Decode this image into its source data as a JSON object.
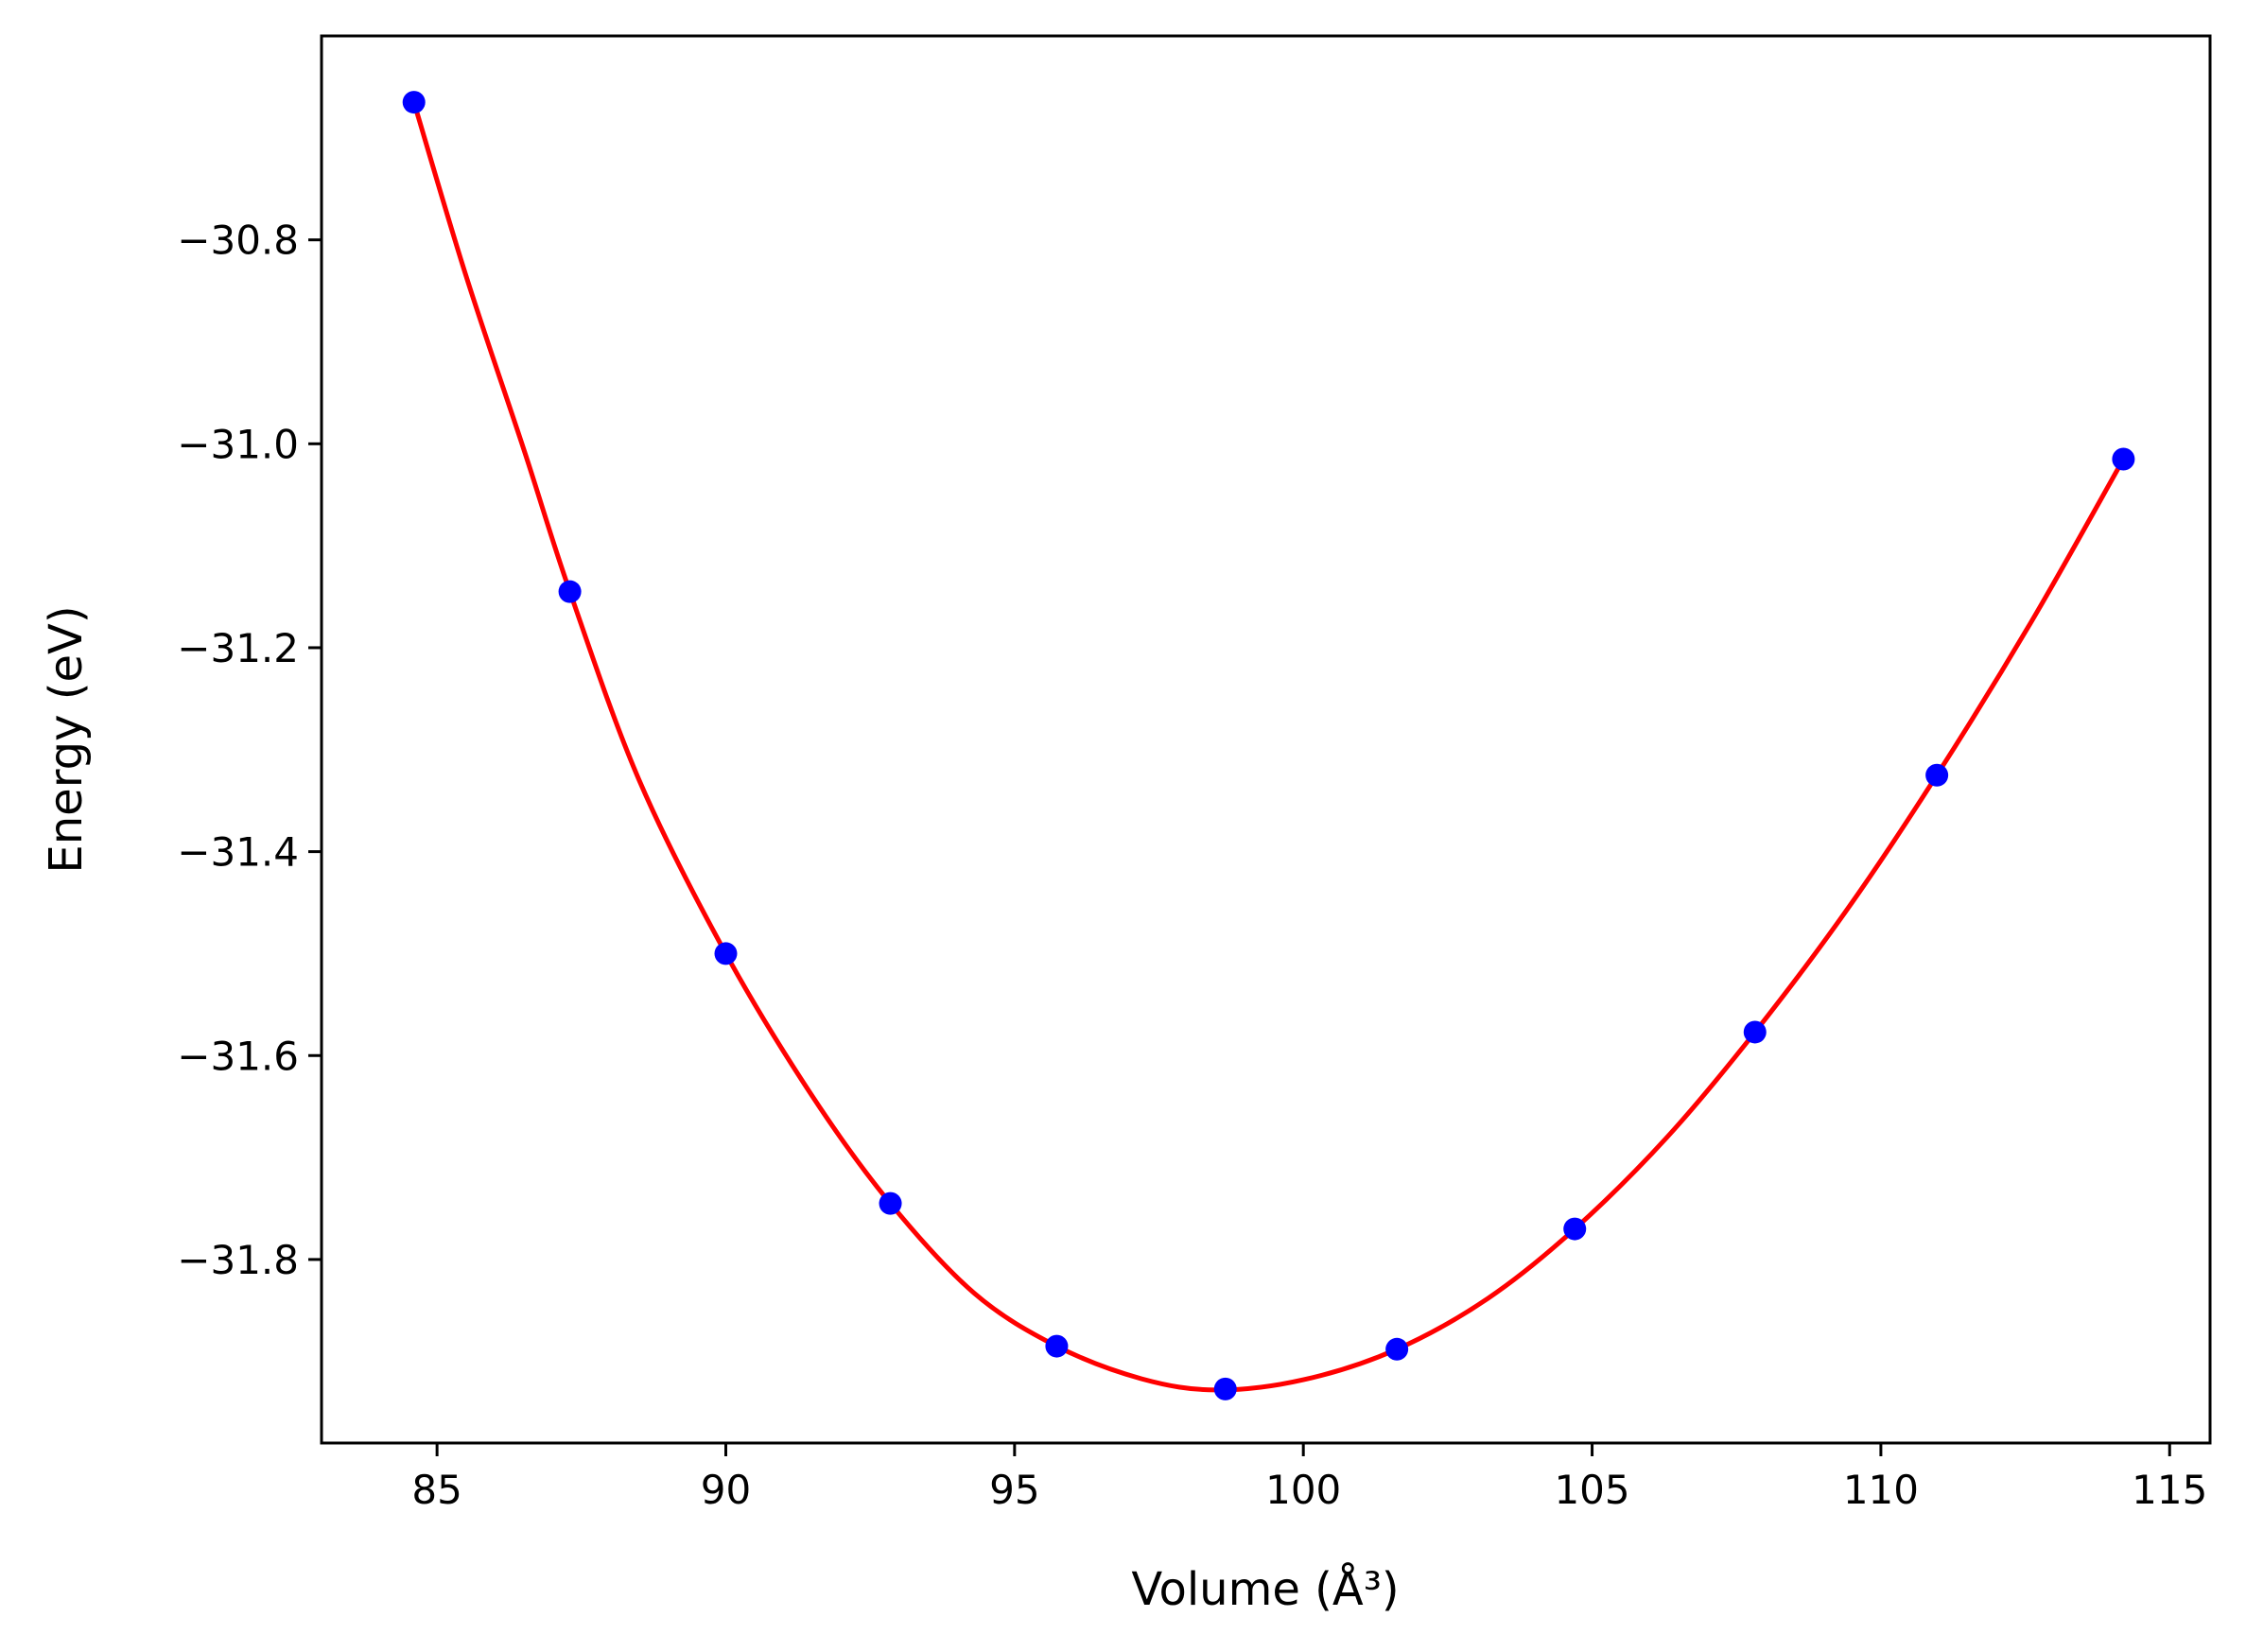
{
  "chart_data": {
    "type": "scatter",
    "title": "",
    "xlabel": "Volume (Å³)",
    "ylabel": "Energy (eV)",
    "xlim": [
      83.0,
      115.7
    ],
    "ylim": [
      -31.98,
      -30.6
    ],
    "xticks": [
      85,
      90,
      95,
      100,
      105,
      110,
      115
    ],
    "xtick_labels": [
      "85",
      "90",
      "95",
      "100",
      "105",
      "110",
      "115"
    ],
    "yticks": [
      -30.8,
      -31.0,
      -31.2,
      -31.4,
      -31.6,
      -31.8
    ],
    "ytick_labels": [
      "−30.8",
      "−31.0",
      "−31.2",
      "−31.4",
      "−31.6",
      "−31.8"
    ],
    "grid": false,
    "series": [
      {
        "kind": "points",
        "color": "#0000ff",
        "x": [
          84.6,
          87.3,
          90.0,
          92.85,
          95.73,
          98.65,
          101.62,
          104.7,
          107.82,
          110.97,
          114.2
        ],
        "y": [
          -30.665,
          -31.145,
          -31.5,
          -31.745,
          -31.885,
          -31.927,
          -31.888,
          -31.77,
          -31.577,
          -31.325,
          -31.015
        ]
      },
      {
        "kind": "fit-curve",
        "color": "#ff0000",
        "x": [
          84.6,
          85.5,
          86.5,
          87.3,
          88.5,
          90.0,
          91.5,
          92.85,
          94.3,
          95.73,
          97.2,
          98.5,
          100.0,
          101.62,
          103.2,
          104.7,
          106.3,
          107.82,
          109.4,
          110.97,
          112.6,
          114.2
        ],
        "y": [
          -30.665,
          -30.835,
          -31.005,
          -31.145,
          -31.33,
          -31.5,
          -31.64,
          -31.745,
          -31.833,
          -31.885,
          -31.917,
          -31.928,
          -31.918,
          -31.888,
          -31.838,
          -31.77,
          -31.68,
          -31.577,
          -31.458,
          -31.325,
          -31.175,
          -31.015
        ]
      }
    ]
  }
}
